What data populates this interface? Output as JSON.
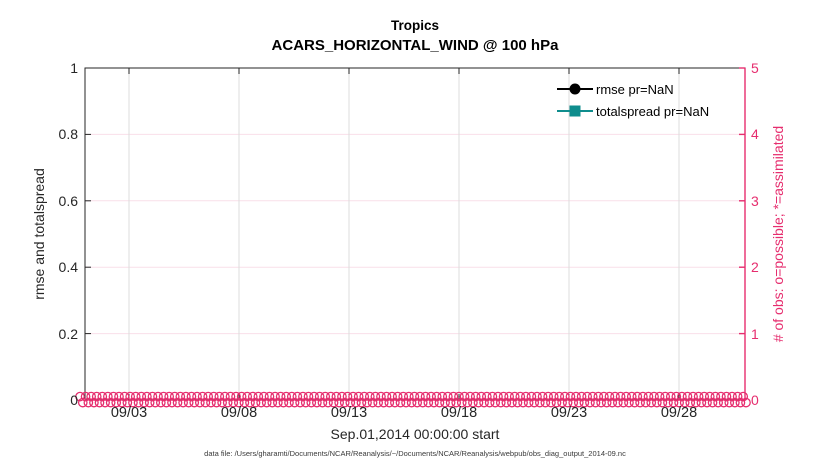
{
  "figure": {
    "caption": "data file: /Users/gharamti/Documents/NCAR/Reanalysis/~/Documents/NCAR/Reanalysis/webpub/obs_diag_output_2014-09.nc"
  },
  "legend": [
    {
      "label": "rmse pr=NaN",
      "marker": "circle",
      "color": "#000000"
    },
    {
      "label": "totalspread pr=NaN",
      "marker": "square",
      "color": "#0f8d8d"
    }
  ],
  "colors": {
    "accent_pink": "#e62d6e",
    "grid_pink": "#f9dfe9",
    "grid_gray": "#dcdcdc",
    "axis_dark": "#262626",
    "teal": "#0f8d8d",
    "black": "#000000"
  },
  "chart_data": {
    "type": "line",
    "title": "Tropics",
    "subtitle": "ACARS_HORIZONTAL_WIND @ 100 hPa",
    "xlabel": "Sep.01,2014 00:00:00 start",
    "x_axis": {
      "start": "Sep.01,2014 00:00:00",
      "range_days": [
        0,
        30
      ],
      "tick_labels": [
        "09/03",
        "09/08",
        "09/13",
        "09/18",
        "09/23",
        "09/28"
      ],
      "tick_days": [
        2,
        7,
        12,
        17,
        22,
        27
      ]
    },
    "left_axis": {
      "label": "rmse and totalspread",
      "range": [
        0,
        1
      ],
      "tick_values": [
        0,
        0.2,
        0.4,
        0.6,
        0.8,
        1
      ],
      "tick_labels": [
        "0",
        "0.2",
        "0.4",
        "0.6",
        "0.8",
        "1"
      ]
    },
    "right_axis": {
      "label": "# of obs: o=possible; *=assimilated",
      "range": [
        0,
        5
      ],
      "tick_values": [
        0,
        1,
        2,
        3,
        4,
        5
      ],
      "tick_labels": [
        "0",
        "1",
        "2",
        "3",
        "4",
        "5"
      ]
    },
    "series": [
      {
        "name": "rmse pr=NaN",
        "axis": "left",
        "marker": "circle",
        "color": "#000000",
        "values": "NaN - no curve plotted"
      },
      {
        "name": "totalspread pr=NaN",
        "axis": "left",
        "marker": "square",
        "color": "#0f8d8d",
        "values": "NaN - no curve plotted"
      },
      {
        "name": "# of obs possible (o)",
        "axis": "right",
        "marker": "o",
        "color": "#e62d6e",
        "bins": 120,
        "all_values": 0
      },
      {
        "name": "# of obs assimilated (*)",
        "axis": "right",
        "marker": "*",
        "color": "#e62d6e",
        "bins": 120,
        "all_values": 0
      }
    ],
    "grid": {
      "vertical": true,
      "horizontal": true
    },
    "legend_position": "top-right-inside"
  }
}
